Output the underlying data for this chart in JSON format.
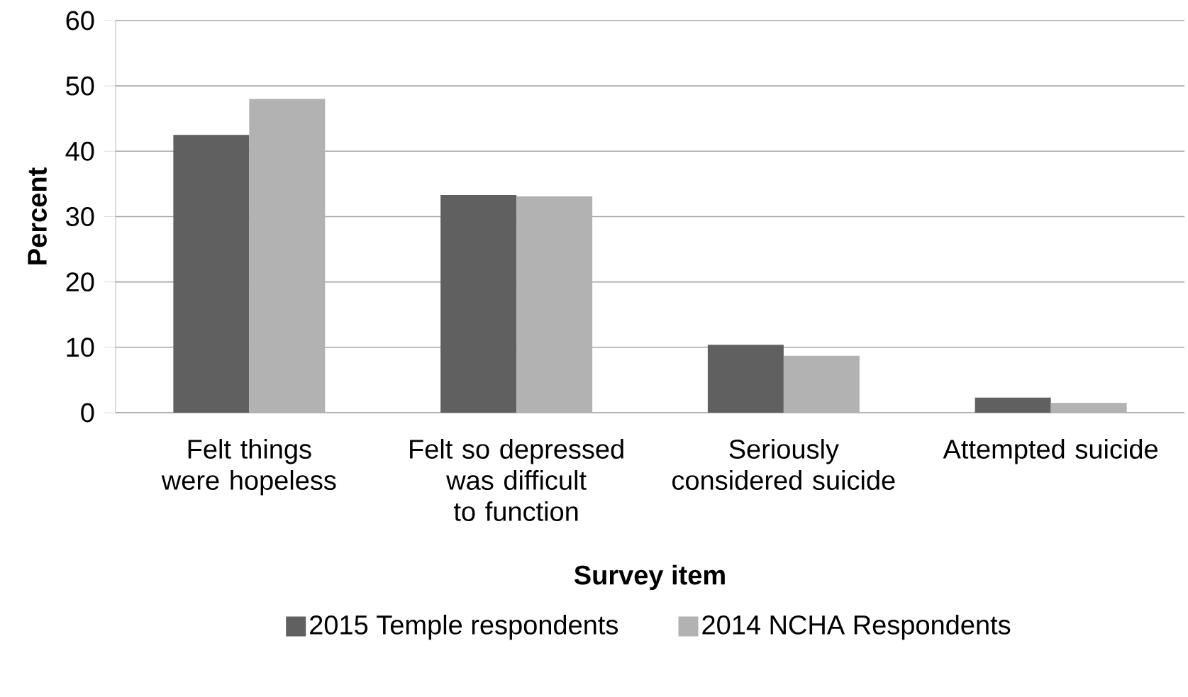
{
  "chart_data": {
    "type": "bar",
    "xlabel": "Survey item",
    "ylabel": "Percent",
    "categories": [
      "Felt things were hopeless",
      "Felt so depressed was difficult to function",
      "Seriously considered suicide",
      "Attempted suicide"
    ],
    "series": [
      {
        "name": "2015 Temple respondents",
        "color": "#606060",
        "values": [
          42.5,
          33.3,
          10.4,
          2.3
        ]
      },
      {
        "name": "2014 NCHA Respondents",
        "color": "#b2b2b2",
        "values": [
          48.0,
          33.1,
          8.7,
          1.5
        ]
      }
    ],
    "ylim": [
      0,
      60
    ],
    "yticks": [
      0,
      10,
      20,
      30,
      40,
      50,
      60
    ],
    "grid": "y",
    "legend": "bottom"
  }
}
